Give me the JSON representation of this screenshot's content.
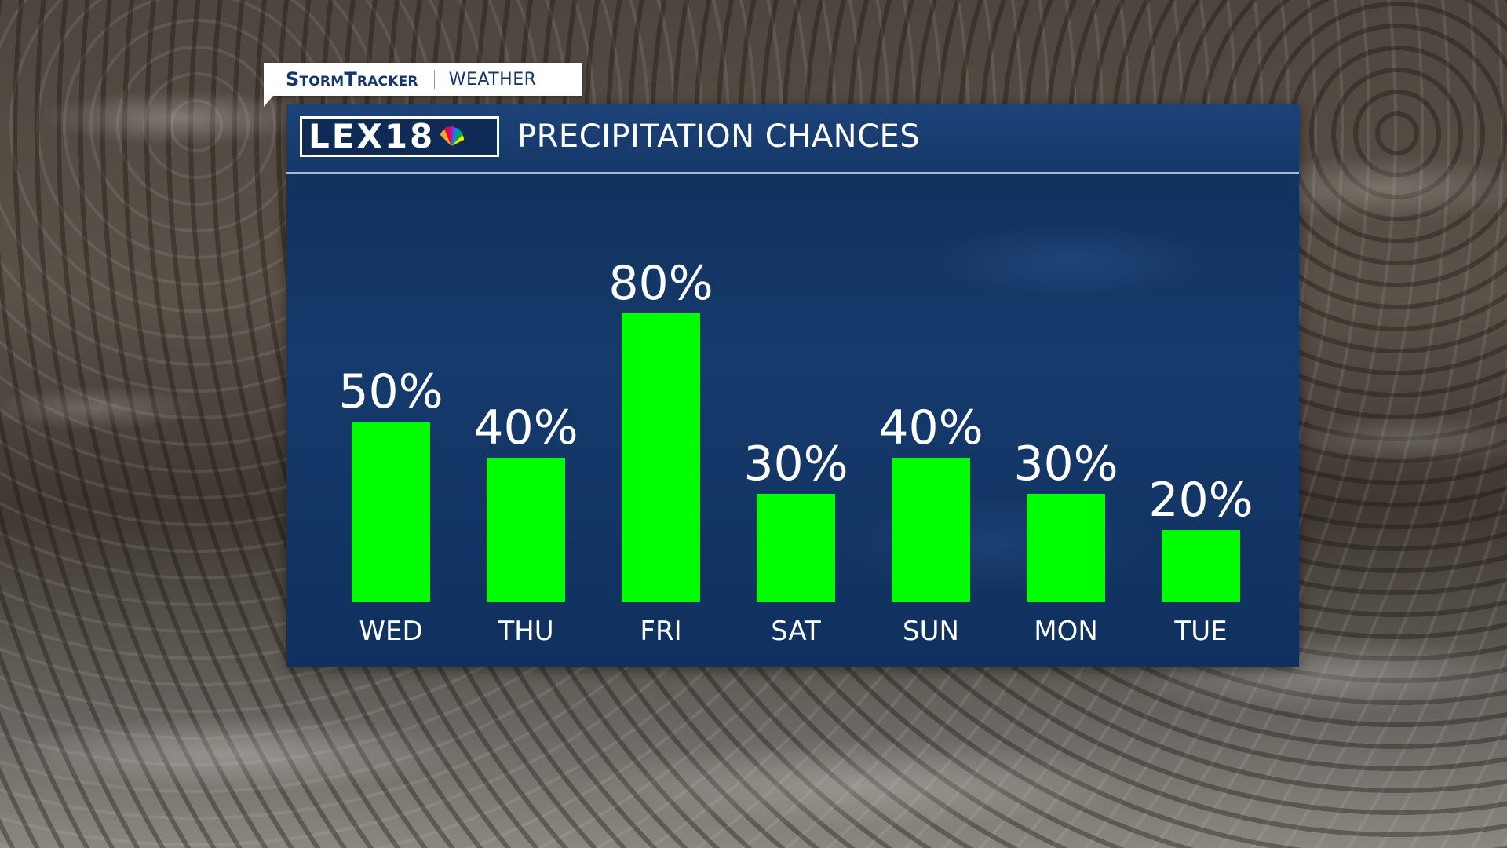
{
  "tag": {
    "brand": "StormTracker",
    "section": "WEATHER"
  },
  "logo": {
    "text": "LEX18"
  },
  "panel": {
    "title": "PRECIPITATION CHANCES"
  },
  "colors": {
    "bar": "#00ff00",
    "panel": "#153a6c",
    "text": "#ffffff"
  },
  "chart_data": {
    "type": "bar",
    "categories": [
      "WED",
      "THU",
      "FRI",
      "SAT",
      "SUN",
      "MON",
      "TUE"
    ],
    "values": [
      50,
      40,
      80,
      30,
      40,
      30,
      20
    ],
    "labels": [
      "50%",
      "40%",
      "80%",
      "30%",
      "40%",
      "30%",
      "20%"
    ],
    "unit": "%",
    "ylim": [
      0,
      100
    ],
    "grid": false,
    "legend": "none"
  }
}
